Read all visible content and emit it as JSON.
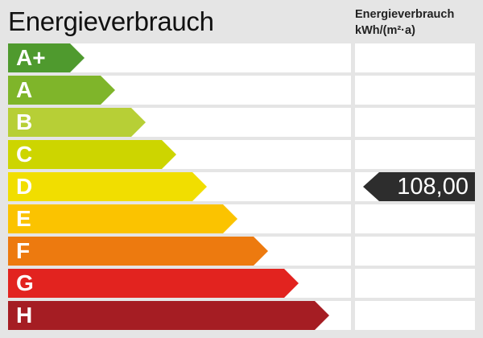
{
  "title": "Energieverbrauch",
  "column_header": {
    "line1": "Energieverbrauch",
    "line2": "kWh/(m²·a)"
  },
  "classes": [
    {
      "label": "A+",
      "color": "#4f9a2e"
    },
    {
      "label": "A",
      "color": "#7fb52a"
    },
    {
      "label": "B",
      "color": "#b7cf36"
    },
    {
      "label": "C",
      "color": "#cdd500"
    },
    {
      "label": "D",
      "color": "#f1de00"
    },
    {
      "label": "E",
      "color": "#fbc300"
    },
    {
      "label": "F",
      "color": "#ed7a0f"
    },
    {
      "label": "G",
      "color": "#e2231f"
    },
    {
      "label": "H",
      "color": "#a51d23"
    }
  ],
  "value": {
    "text": "108,00",
    "class": "D"
  }
}
